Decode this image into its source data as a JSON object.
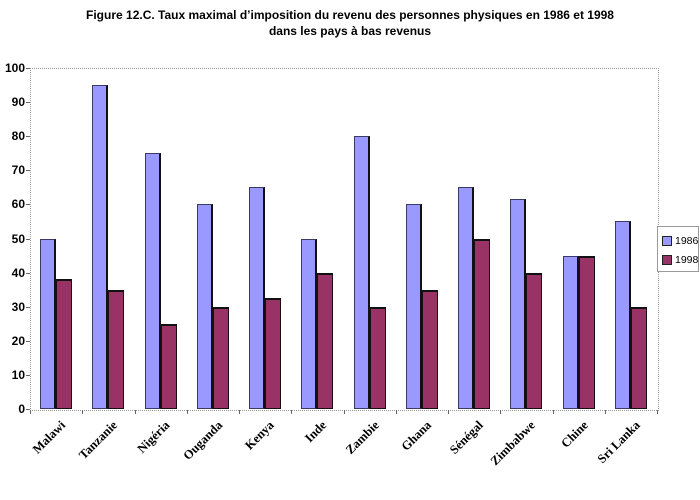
{
  "title": {
    "line1": "Figure 12.C.  Taux maximal d’imposition du revenu des personnes physiques en 1986 et 1998",
    "line2": "dans les pays à bas revenus"
  },
  "chart_data": {
    "type": "bar",
    "categories": [
      "Malawi",
      "Tanzanie",
      "Nigéria",
      "Ouganda",
      "Kenya",
      "Inde",
      "Zambie",
      "Ghana",
      "Sénégal",
      "Zimbabwe",
      "Chine",
      "Sri Lanka"
    ],
    "series": [
      {
        "name": "1986",
        "color": "#9999ff",
        "values": [
          50,
          95,
          75,
          60,
          65,
          50,
          80,
          60,
          65,
          61.5,
          45,
          55
        ]
      },
      {
        "name": "1998",
        "color": "#993366",
        "values": [
          38,
          35,
          25,
          30,
          32.5,
          40,
          30,
          35,
          50,
          40,
          45,
          30
        ]
      }
    ],
    "title": "Figure 12.C.  Taux maximal d’imposition du revenu des personnes physiques en 1986 et 1998 dans les pays à bas revenus",
    "xlabel": "",
    "ylabel": "",
    "ylim": [
      0,
      100
    ],
    "yticks": [
      0,
      10,
      20,
      30,
      40,
      50,
      60,
      70,
      80,
      90,
      100
    ],
    "grid": false,
    "legend_position": "right"
  },
  "colors": {
    "series_1986": "#9999ff",
    "series_1998": "#993366",
    "plot_border": "#9a9a9a",
    "text": "#000000"
  }
}
